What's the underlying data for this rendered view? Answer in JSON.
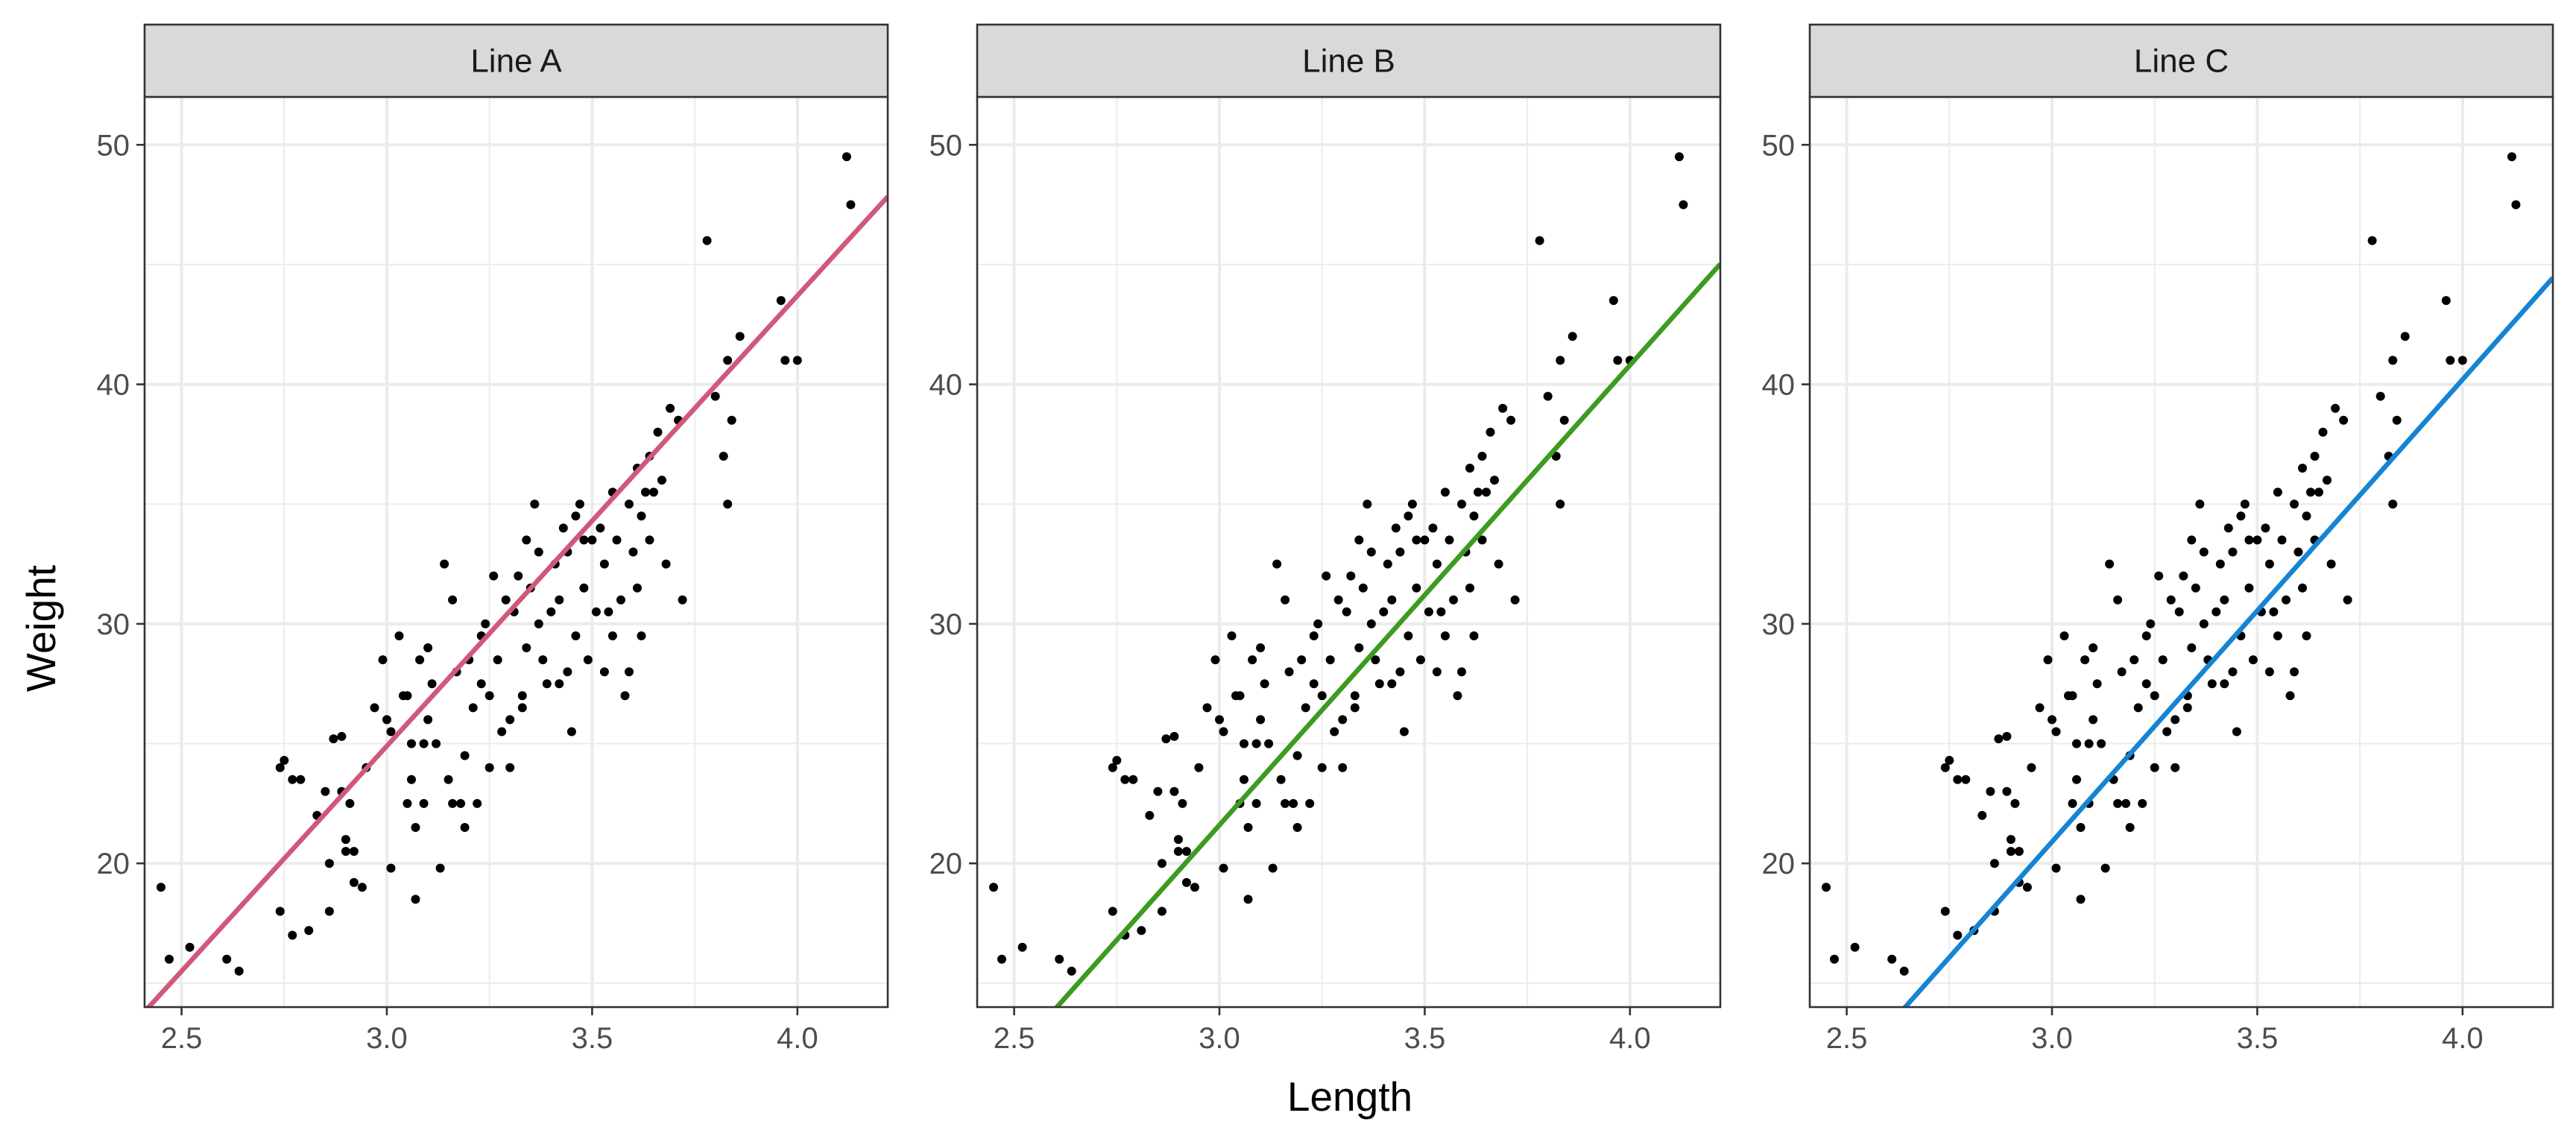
{
  "chart_data": {
    "type": "scatter",
    "xlabel": "Length",
    "ylabel": "Weight",
    "xlim": [
      2.41,
      4.22
    ],
    "ylim": [
      14.0,
      52.0
    ],
    "xticks": [
      2.5,
      3.0,
      3.5,
      4.0
    ],
    "yticks": [
      20,
      30,
      40,
      50
    ],
    "xtick_labels": [
      "2.5",
      "3.0",
      "3.5",
      "4.0"
    ],
    "ytick_labels": [
      "20",
      "30",
      "40",
      "50"
    ],
    "grid": true,
    "points_color": "#000000",
    "facets": [
      {
        "label": "Line A",
        "color": "#d1587a",
        "intercept": -31.5,
        "slope": 18.8
      },
      {
        "label": "Line B",
        "color": "#3d9b1f",
        "intercept": -36.0,
        "slope": 19.2
      },
      {
        "label": "Line C",
        "color": "#1584d4",
        "intercept": -37.0,
        "slope": 19.3
      }
    ],
    "points": [
      [
        2.45,
        19.0
      ],
      [
        2.47,
        16.0
      ],
      [
        2.52,
        16.5
      ],
      [
        2.61,
        16.0
      ],
      [
        2.64,
        15.5
      ],
      [
        2.74,
        24.0
      ],
      [
        2.75,
        24.3
      ],
      [
        2.74,
        18.0
      ],
      [
        2.77,
        23.5
      ],
      [
        2.79,
        23.5
      ],
      [
        2.77,
        17.0
      ],
      [
        2.81,
        17.2
      ],
      [
        2.83,
        22.0
      ],
      [
        2.85,
        23.0
      ],
      [
        2.87,
        25.2
      ],
      [
        2.86,
        18.0
      ],
      [
        2.86,
        20.0
      ],
      [
        2.89,
        23.0
      ],
      [
        2.89,
        25.3
      ],
      [
        2.9,
        20.5
      ],
      [
        2.9,
        21.0
      ],
      [
        2.91,
        22.5
      ],
      [
        2.92,
        19.2
      ],
      [
        2.92,
        20.5
      ],
      [
        2.94,
        19.0
      ],
      [
        2.95,
        24.0
      ],
      [
        2.97,
        26.5
      ],
      [
        2.99,
        28.5
      ],
      [
        3.0,
        26.0
      ],
      [
        3.01,
        25.5
      ],
      [
        3.01,
        19.8
      ],
      [
        3.03,
        29.5
      ],
      [
        3.04,
        27.0
      ],
      [
        3.05,
        27.0
      ],
      [
        3.05,
        22.5
      ],
      [
        3.06,
        23.5
      ],
      [
        3.06,
        25.0
      ],
      [
        3.07,
        21.5
      ],
      [
        3.07,
        18.5
      ],
      [
        3.08,
        28.5
      ],
      [
        3.09,
        25.0
      ],
      [
        3.09,
        22.5
      ],
      [
        3.1,
        29.0
      ],
      [
        3.1,
        26.0
      ],
      [
        3.11,
        27.5
      ],
      [
        3.12,
        25.0
      ],
      [
        3.13,
        19.8
      ],
      [
        3.14,
        32.5
      ],
      [
        3.15,
        23.5
      ],
      [
        3.16,
        22.5
      ],
      [
        3.16,
        31.0
      ],
      [
        3.17,
        28.0
      ],
      [
        3.18,
        22.5
      ],
      [
        3.19,
        24.5
      ],
      [
        3.19,
        21.5
      ],
      [
        3.2,
        28.5
      ],
      [
        3.21,
        26.5
      ],
      [
        3.22,
        22.5
      ],
      [
        3.23,
        27.5
      ],
      [
        3.23,
        29.5
      ],
      [
        3.24,
        30.0
      ],
      [
        3.25,
        27.0
      ],
      [
        3.25,
        24.0
      ],
      [
        3.26,
        32.0
      ],
      [
        3.27,
        28.5
      ],
      [
        3.28,
        25.5
      ],
      [
        3.29,
        31.0
      ],
      [
        3.3,
        24.0
      ],
      [
        3.3,
        26.0
      ],
      [
        3.31,
        30.5
      ],
      [
        3.32,
        32.0
      ],
      [
        3.33,
        26.5
      ],
      [
        3.33,
        27.0
      ],
      [
        3.34,
        33.5
      ],
      [
        3.34,
        29.0
      ],
      [
        3.35,
        31.5
      ],
      [
        3.36,
        35.0
      ],
      [
        3.37,
        30.0
      ],
      [
        3.37,
        33.0
      ],
      [
        3.38,
        28.5
      ],
      [
        3.39,
        27.5
      ],
      [
        3.4,
        30.5
      ],
      [
        3.41,
        32.5
      ],
      [
        3.42,
        27.5
      ],
      [
        3.42,
        31.0
      ],
      [
        3.43,
        34.0
      ],
      [
        3.44,
        28.0
      ],
      [
        3.44,
        33.0
      ],
      [
        3.45,
        25.5
      ],
      [
        3.46,
        34.5
      ],
      [
        3.46,
        29.5
      ],
      [
        3.47,
        35.0
      ],
      [
        3.48,
        31.5
      ],
      [
        3.48,
        33.5
      ],
      [
        3.49,
        28.5
      ],
      [
        3.5,
        33.5
      ],
      [
        3.51,
        30.5
      ],
      [
        3.52,
        34.0
      ],
      [
        3.53,
        32.5
      ],
      [
        3.53,
        28.0
      ],
      [
        3.54,
        30.5
      ],
      [
        3.55,
        35.5
      ],
      [
        3.55,
        29.5
      ],
      [
        3.56,
        33.5
      ],
      [
        3.57,
        31.0
      ],
      [
        3.58,
        27.0
      ],
      [
        3.59,
        35.0
      ],
      [
        3.59,
        28.0
      ],
      [
        3.6,
        33.0
      ],
      [
        3.61,
        36.5
      ],
      [
        3.61,
        31.5
      ],
      [
        3.62,
        34.5
      ],
      [
        3.62,
        29.5
      ],
      [
        3.63,
        35.5
      ],
      [
        3.64,
        37.0
      ],
      [
        3.64,
        33.5
      ],
      [
        3.65,
        35.5
      ],
      [
        3.66,
        38.0
      ],
      [
        3.67,
        36.0
      ],
      [
        3.68,
        32.5
      ],
      [
        3.69,
        39.0
      ],
      [
        3.71,
        38.5
      ],
      [
        3.72,
        31.0
      ],
      [
        3.78,
        46.0
      ],
      [
        3.8,
        39.5
      ],
      [
        3.82,
        37.0
      ],
      [
        3.83,
        35.0
      ],
      [
        3.84,
        38.5
      ],
      [
        3.83,
        41.0
      ],
      [
        3.86,
        42.0
      ],
      [
        3.96,
        43.5
      ],
      [
        3.97,
        41.0
      ],
      [
        4.0,
        41.0
      ],
      [
        4.12,
        49.5
      ],
      [
        4.13,
        47.5
      ]
    ]
  }
}
